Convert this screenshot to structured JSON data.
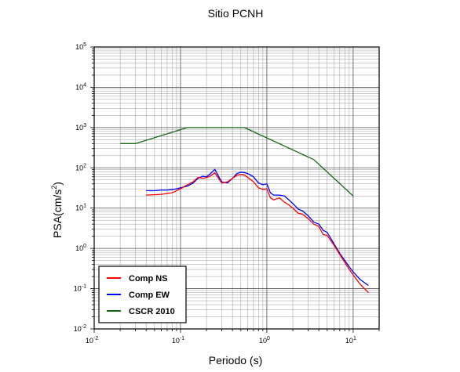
{
  "chart_data": {
    "type": "line",
    "title": "Sitio PCNH",
    "xlabel": "Periodo (s)",
    "ylabel": "PSA(cm/s",
    "ylabel_exp": "2",
    "ylabel_close": ")",
    "x_scale": "log",
    "y_scale": "log",
    "xlim": [
      0.01,
      20
    ],
    "ylim": [
      0.01,
      100000
    ],
    "x_ticks": [
      {
        "base": "10",
        "exp": "-2",
        "value": 0.01
      },
      {
        "base": "10",
        "exp": "-1",
        "value": 0.1
      },
      {
        "base": "10",
        "exp": "0",
        "value": 1
      },
      {
        "base": "10",
        "exp": "1",
        "value": 10
      }
    ],
    "y_ticks": [
      {
        "base": "10",
        "exp": "-2",
        "value": 0.01
      },
      {
        "base": "10",
        "exp": "-1",
        "value": 0.1
      },
      {
        "base": "10",
        "exp": "0",
        "value": 1
      },
      {
        "base": "10",
        "exp": "1",
        "value": 10
      },
      {
        "base": "10",
        "exp": "2",
        "value": 100
      },
      {
        "base": "10",
        "exp": "3",
        "value": 1000
      },
      {
        "base": "10",
        "exp": "4",
        "value": 10000
      },
      {
        "base": "10",
        "exp": "5",
        "value": 100000
      }
    ],
    "grid": true,
    "legend_position": "bottom-left",
    "series": [
      {
        "name": "Comp NS",
        "color": "#ff0000",
        "x": [
          0.04,
          0.05,
          0.06,
          0.07,
          0.08,
          0.09,
          0.1,
          0.12,
          0.14,
          0.16,
          0.18,
          0.2,
          0.22,
          0.25,
          0.28,
          0.3,
          0.35,
          0.4,
          0.45,
          0.5,
          0.55,
          0.6,
          0.7,
          0.8,
          0.9,
          1.0,
          1.1,
          1.2,
          1.4,
          1.6,
          1.8,
          2.0,
          2.3,
          2.6,
          3.0,
          3.5,
          4.0,
          4.5,
          5.0,
          6.0,
          7.0,
          8.0,
          9.0,
          10.0,
          12.0,
          15.0
        ],
        "y": [
          21,
          21.5,
          22,
          23,
          24,
          27,
          30,
          38,
          45,
          58,
          55,
          57,
          62,
          75,
          52,
          42,
          45,
          55,
          65,
          68,
          66,
          58,
          45,
          32,
          29,
          30,
          18,
          16,
          18,
          14,
          12,
          10,
          7.5,
          7,
          5.5,
          4,
          3.5,
          2.2,
          2.1,
          1.2,
          0.7,
          0.45,
          0.3,
          0.22,
          0.13,
          0.08
        ]
      },
      {
        "name": "Comp EW",
        "color": "#0000ff",
        "x": [
          0.04,
          0.05,
          0.06,
          0.07,
          0.08,
          0.09,
          0.1,
          0.12,
          0.14,
          0.16,
          0.18,
          0.2,
          0.22,
          0.25,
          0.28,
          0.3,
          0.35,
          0.4,
          0.45,
          0.5,
          0.55,
          0.6,
          0.7,
          0.8,
          0.9,
          1.0,
          1.1,
          1.2,
          1.4,
          1.6,
          1.8,
          2.0,
          2.3,
          2.6,
          3.0,
          3.5,
          4.0,
          4.5,
          5.0,
          6.0,
          7.0,
          8.0,
          9.0,
          10.0,
          12.0,
          15.0
        ],
        "y": [
          27,
          27,
          28,
          28,
          29,
          30,
          32,
          35,
          42,
          55,
          62,
          60,
          70,
          92,
          58,
          45,
          42,
          55,
          72,
          78,
          76,
          72,
          60,
          42,
          38,
          40,
          24,
          21,
          21,
          20,
          16,
          13,
          9.5,
          8.5,
          6.5,
          4.5,
          4.0,
          2.8,
          2.5,
          1.3,
          0.75,
          0.5,
          0.35,
          0.26,
          0.17,
          0.12
        ]
      },
      {
        "name": "CSCR 2010",
        "color": "#1a6618",
        "x": [
          0.02,
          0.03,
          0.12,
          0.5,
          0.55,
          3.5,
          10.0
        ],
        "y": [
          400,
          400,
          1000,
          1000,
          1000,
          160,
          20
        ]
      }
    ]
  }
}
